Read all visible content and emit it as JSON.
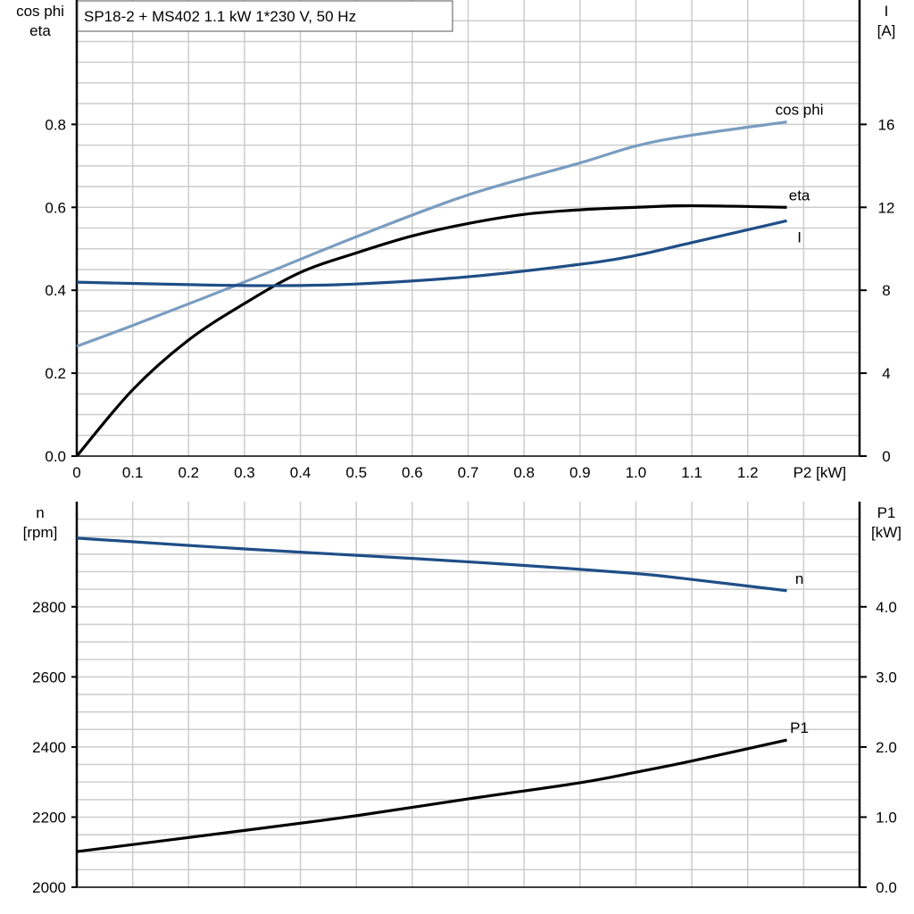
{
  "chart_data": [
    {
      "type": "line",
      "title": "SP18-2 + MS402   1.1 kW   1*230 V, 50 Hz",
      "xlabel": "P2 [kW]",
      "ylabel_left": [
        "cos phi",
        "eta"
      ],
      "ylabel_right": [
        "I",
        "[A]"
      ],
      "xlim": [
        0,
        1.4
      ],
      "ylim_left": [
        0,
        1.1
      ],
      "ylim_right": [
        0,
        22
      ],
      "xticks": [
        "0",
        "0.1",
        "0.2",
        "0.3",
        "0.4",
        "0.5",
        "0.6",
        "0.7",
        "0.8",
        "0.9",
        "1.0",
        "1.1",
        "1.2"
      ],
      "yticks_left": [
        "0.0",
        "0.2",
        "0.4",
        "0.6",
        "0.8"
      ],
      "yticks_right": [
        "0",
        "4",
        "8",
        "12",
        "16"
      ],
      "grid": true,
      "series": [
        {
          "name": "cos phi",
          "axis": "left",
          "color": "#7a9cc0",
          "x": [
            0,
            0.1,
            0.3,
            0.5,
            0.7,
            0.9,
            1.0,
            1.1,
            1.27
          ],
          "y": [
            0.265,
            0.315,
            0.42,
            0.529,
            0.63,
            0.707,
            0.748,
            0.774,
            0.806
          ]
        },
        {
          "name": "eta",
          "axis": "left",
          "color": "#000000",
          "x": [
            0,
            0.1,
            0.2,
            0.3,
            0.4,
            0.5,
            0.6,
            0.7,
            0.8,
            0.9,
            1.0,
            1.1,
            1.27
          ],
          "y": [
            0,
            0.16,
            0.28,
            0.368,
            0.443,
            0.49,
            0.531,
            0.561,
            0.583,
            0.594,
            0.6,
            0.604,
            0.6
          ]
        },
        {
          "name": "I",
          "axis": "right",
          "color": "#1f4e87",
          "x": [
            0,
            0.2,
            0.35,
            0.5,
            0.7,
            0.9,
            1.0,
            1.1,
            1.27
          ],
          "y": [
            8.39,
            8.27,
            8.22,
            8.3,
            8.65,
            9.25,
            9.68,
            10.3,
            11.35
          ]
        }
      ]
    },
    {
      "type": "line",
      "xlim": [
        0,
        1.4
      ],
      "ylabel_left": [
        "n",
        "[rpm]"
      ],
      "ylabel_right": [
        "P1",
        "[kW]"
      ],
      "ylim_left": [
        2000,
        3100
      ],
      "ylim_right": [
        0,
        5.5
      ],
      "yticks_left": [
        "2000",
        "2200",
        "2400",
        "2600",
        "2800"
      ],
      "yticks_right": [
        "0.0",
        "1.0",
        "2.0",
        "3.0",
        "4.0"
      ],
      "grid": true,
      "series": [
        {
          "name": "n",
          "axis": "left",
          "color": "#1f4e87",
          "x": [
            0,
            0.3,
            0.6,
            0.8,
            1.0,
            1.1,
            1.27
          ],
          "y": [
            2996,
            2965,
            2938,
            2918,
            2895,
            2878,
            2846
          ]
        },
        {
          "name": "P1",
          "axis": "right",
          "color": "#000000",
          "x": [
            0,
            0.3,
            0.5,
            0.7,
            0.9,
            1.0,
            1.1,
            1.27
          ],
          "y": [
            0.508,
            0.81,
            1.02,
            1.26,
            1.49,
            1.64,
            1.8,
            2.1
          ]
        }
      ]
    }
  ]
}
